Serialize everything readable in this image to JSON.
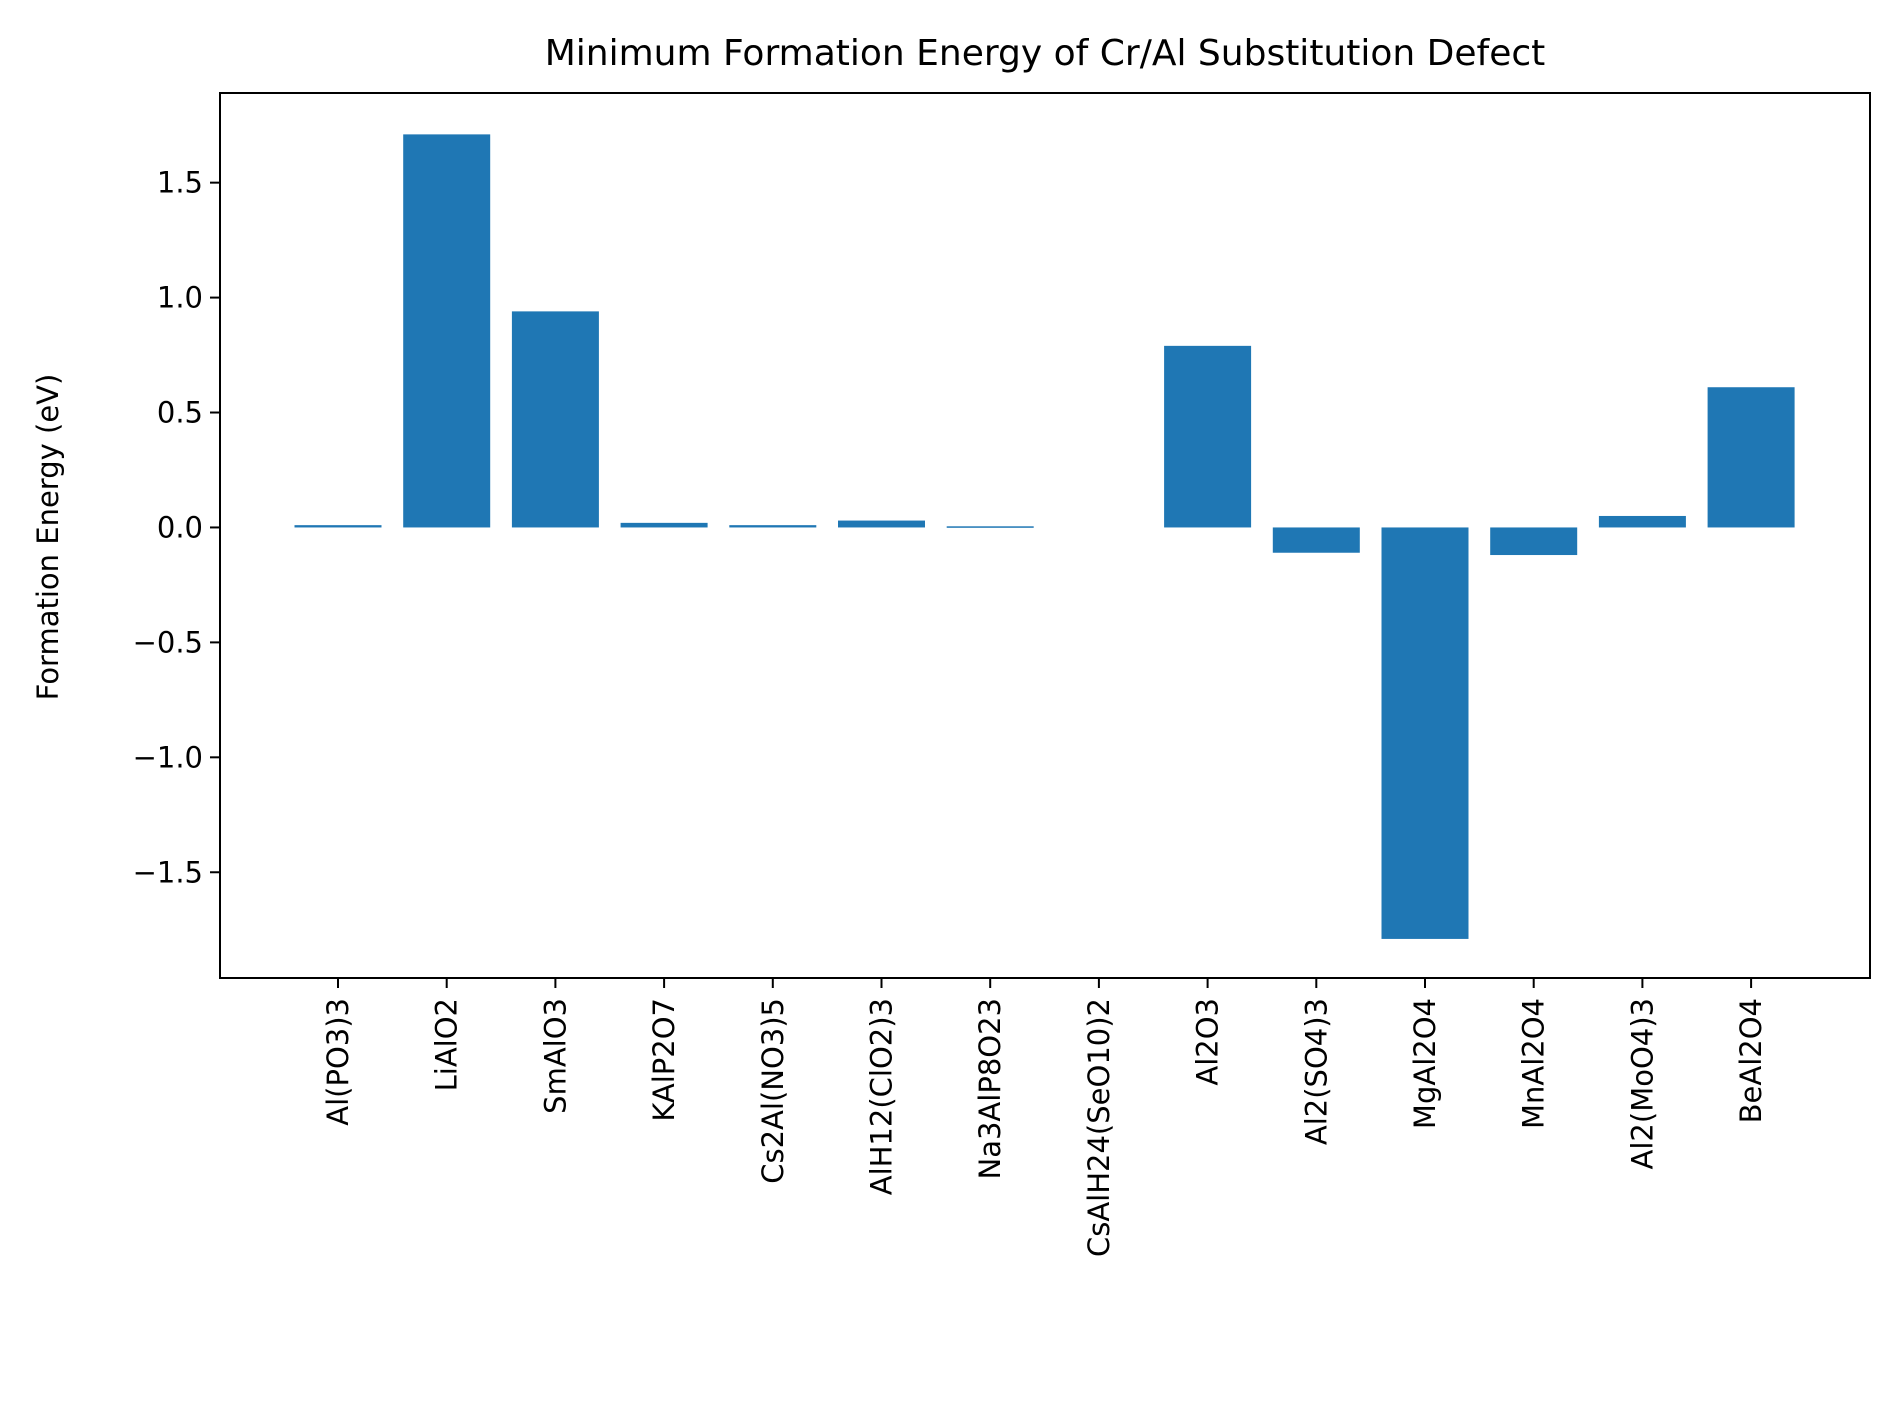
{
  "chart_data": {
    "type": "bar",
    "title": "Minimum Formation Energy of Cr/Al Substitution Defect",
    "xlabel": "",
    "ylabel": "Formation Energy (eV)",
    "categories": [
      "Al(PO3)3",
      "LiAlO2",
      "SmAlO3",
      "KAlP2O7",
      "Cs2Al(NO3)5",
      "AlH12(ClO2)3",
      "Na3AlP8O23",
      "CsAlH24(SeO10)2",
      "Al2O3",
      "Al2(SO4)3",
      "MgAl2O4",
      "MnAl2O4",
      "Al2(MoO4)3",
      "BeAl2O4"
    ],
    "values": [
      0.01,
      1.71,
      0.94,
      0.02,
      0.01,
      0.03,
      0.005,
      0.0,
      0.79,
      -0.11,
      -1.79,
      -0.12,
      0.05,
      0.61
    ],
    "ylim": [
      -1.96,
      1.89
    ],
    "yticks": [
      -1.5,
      -1.0,
      -0.5,
      0.0,
      0.5,
      1.0,
      1.5
    ],
    "ytick_labels": [
      "−1.5",
      "−1.0",
      "−0.5",
      "0.0",
      "0.5",
      "1.0",
      "1.5"
    ],
    "bar_color": "#1f77b4",
    "grid": false,
    "legend": "none"
  }
}
